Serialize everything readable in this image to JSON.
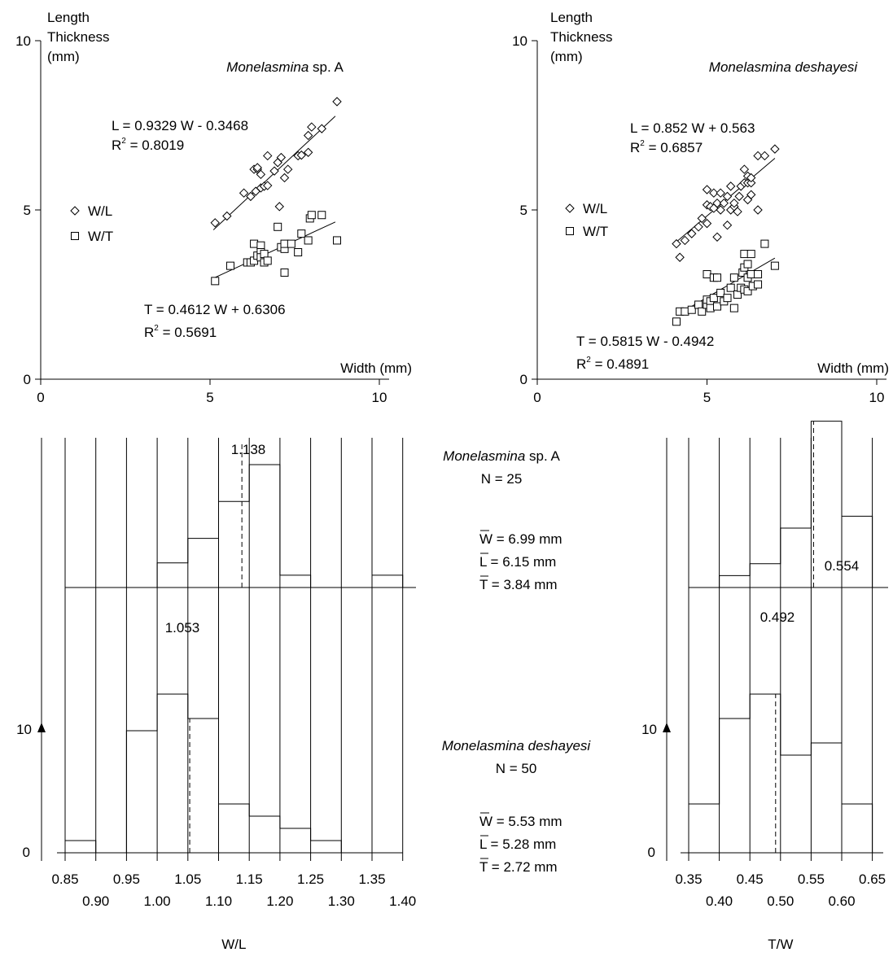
{
  "chart_data": [
    {
      "type": "scatter",
      "panel": "top-left",
      "title": "Monelasmina sp. A",
      "title_italic_part": "Monelasmina",
      "title_normal_part": " sp. A",
      "xlabel": "Width (mm)",
      "ylabel_lines": [
        "Length",
        "Thickness",
        "(mm)"
      ],
      "xlim": [
        0,
        10
      ],
      "ylim": [
        0,
        10
      ],
      "xticks": [
        0,
        5,
        10
      ],
      "yticks": [
        0,
        5,
        10
      ],
      "grid": false,
      "legend_placement": "left",
      "series": [
        {
          "name": "W/L",
          "marker": "diamond",
          "equation": "L = 0.9329 W - 0.3468",
          "r2_label": "R",
          "r2_sup": "2",
          "r2_value": " = 0.8019",
          "fit": {
            "slope": 0.9329,
            "intercept": -0.3468,
            "x_range": [
              5.1,
              8.7
            ]
          },
          "points": [
            [
              5.15,
              4.62
            ],
            [
              5.5,
              4.82
            ],
            [
              6.0,
              5.5
            ],
            [
              6.2,
              5.4
            ],
            [
              6.35,
              5.55
            ],
            [
              6.3,
              6.2
            ],
            [
              6.4,
              6.2
            ],
            [
              6.5,
              5.65
            ],
            [
              6.6,
              5.7
            ],
            [
              6.7,
              5.72
            ],
            [
              6.4,
              6.25
            ],
            [
              6.5,
              6.05
            ],
            [
              6.7,
              6.6
            ],
            [
              6.9,
              6.15
            ],
            [
              7.0,
              6.4
            ],
            [
              7.05,
              5.1
            ],
            [
              7.2,
              5.95
            ],
            [
              7.1,
              6.55
            ],
            [
              7.3,
              6.2
            ],
            [
              7.6,
              6.6
            ],
            [
              7.7,
              6.62
            ],
            [
              7.9,
              6.7
            ],
            [
              7.9,
              7.2
            ],
            [
              8.0,
              7.45
            ],
            [
              8.3,
              7.4
            ],
            [
              8.75,
              8.2
            ]
          ]
        },
        {
          "name": "W/T",
          "marker": "square",
          "equation": "T = 0.4612 W + 0.6306",
          "r2_label": "R",
          "r2_sup": "2",
          "r2_value": " = 0.5691",
          "fit": {
            "slope": 0.4612,
            "intercept": 0.6306,
            "x_range": [
              5.1,
              8.7
            ]
          },
          "points": [
            [
              5.15,
              2.9
            ],
            [
              5.6,
              3.35
            ],
            [
              6.1,
              3.45
            ],
            [
              6.2,
              3.45
            ],
            [
              6.3,
              3.5
            ],
            [
              6.3,
              4.0
            ],
            [
              6.4,
              3.65
            ],
            [
              6.5,
              3.95
            ],
            [
              6.5,
              3.75
            ],
            [
              6.5,
              3.6
            ],
            [
              6.6,
              3.7
            ],
            [
              6.6,
              3.45
            ],
            [
              6.7,
              3.5
            ],
            [
              7.0,
              4.5
            ],
            [
              7.1,
              3.9
            ],
            [
              7.2,
              3.85
            ],
            [
              7.2,
              4.0
            ],
            [
              7.2,
              3.15
            ],
            [
              7.4,
              4.0
            ],
            [
              7.6,
              3.75
            ],
            [
              7.7,
              4.3
            ],
            [
              7.9,
              4.1
            ],
            [
              7.95,
              4.75
            ],
            [
              8.0,
              4.85
            ],
            [
              8.3,
              4.85
            ],
            [
              8.75,
              4.1
            ]
          ]
        }
      ]
    },
    {
      "type": "scatter",
      "panel": "top-right",
      "title": "Monelasmina deshayesi",
      "xlabel": "Width (mm)",
      "ylabel_lines": [
        "Length",
        "Thickness",
        "(mm)"
      ],
      "xlim": [
        0,
        10
      ],
      "ylim": [
        0,
        10
      ],
      "xticks": [
        0,
        5,
        10
      ],
      "yticks": [
        0,
        5,
        10
      ],
      "grid": false,
      "legend_placement": "left",
      "series": [
        {
          "name": "W/L",
          "marker": "diamond",
          "equation": "L = 0.852 W + 0.563",
          "r2_label": "R",
          "r2_sup": "2",
          "r2_value": " = 0.6857",
          "fit": {
            "slope": 0.852,
            "intercept": 0.563,
            "x_range": [
              4.1,
              7.0
            ]
          },
          "points": [
            [
              4.1,
              4.0
            ],
            [
              4.2,
              3.6
            ],
            [
              4.35,
              4.1
            ],
            [
              4.55,
              4.3
            ],
            [
              4.75,
              4.5
            ],
            [
              4.85,
              4.75
            ],
            [
              5.0,
              4.6
            ],
            [
              5.0,
              5.15
            ],
            [
              5.0,
              5.6
            ],
            [
              5.1,
              5.1
            ],
            [
              5.2,
              5.05
            ],
            [
              5.2,
              5.5
            ],
            [
              5.3,
              5.2
            ],
            [
              5.3,
              4.2
            ],
            [
              5.4,
              5.0
            ],
            [
              5.4,
              5.5
            ],
            [
              5.5,
              5.2
            ],
            [
              5.6,
              5.4
            ],
            [
              5.6,
              4.55
            ],
            [
              5.7,
              5.0
            ],
            [
              5.7,
              5.7
            ],
            [
              5.8,
              5.1
            ],
            [
              5.8,
              5.2
            ],
            [
              5.9,
              4.95
            ],
            [
              5.95,
              5.4
            ],
            [
              6.0,
              5.7
            ],
            [
              6.1,
              5.8
            ],
            [
              6.1,
              6.2
            ],
            [
              6.2,
              5.8
            ],
            [
              6.2,
              6.0
            ],
            [
              6.2,
              5.3
            ],
            [
              6.3,
              5.8
            ],
            [
              6.3,
              5.45
            ],
            [
              6.3,
              5.95
            ],
            [
              6.5,
              5.0
            ],
            [
              6.5,
              6.6
            ],
            [
              6.7,
              6.6
            ],
            [
              7.0,
              6.8
            ]
          ]
        },
        {
          "name": "W/T",
          "marker": "square",
          "equation": "T = 0.5815 W - 0.4942",
          "r2_label": "R",
          "r2_sup": "2",
          "r2_value": " = 0.4891",
          "fit": {
            "slope": 0.5815,
            "intercept": -0.4942,
            "x_range": [
              4.1,
              7.0
            ]
          },
          "points": [
            [
              4.1,
              1.7
            ],
            [
              4.2,
              2.0
            ],
            [
              4.35,
              2.0
            ],
            [
              4.55,
              2.05
            ],
            [
              4.75,
              2.2
            ],
            [
              4.85,
              2.0
            ],
            [
              5.0,
              2.2
            ],
            [
              5.0,
              2.35
            ],
            [
              5.0,
              3.1
            ],
            [
              5.1,
              2.3
            ],
            [
              5.1,
              2.1
            ],
            [
              5.2,
              2.4
            ],
            [
              5.2,
              3.0
            ],
            [
              5.3,
              3.0
            ],
            [
              5.3,
              2.15
            ],
            [
              5.4,
              2.55
            ],
            [
              5.5,
              2.3
            ],
            [
              5.6,
              2.4
            ],
            [
              5.7,
              2.7
            ],
            [
              5.8,
              3.0
            ],
            [
              5.8,
              2.1
            ],
            [
              5.9,
              2.5
            ],
            [
              6.0,
              2.7
            ],
            [
              6.05,
              3.15
            ],
            [
              6.1,
              2.65
            ],
            [
              6.1,
              3.3
            ],
            [
              6.1,
              3.7
            ],
            [
              6.2,
              2.6
            ],
            [
              6.2,
              3.4
            ],
            [
              6.2,
              3.0
            ],
            [
              6.3,
              3.7
            ],
            [
              6.3,
              3.1
            ],
            [
              6.35,
              2.75
            ],
            [
              6.5,
              2.8
            ],
            [
              6.5,
              3.1
            ],
            [
              6.7,
              4.0
            ],
            [
              7.0,
              3.35
            ]
          ]
        }
      ]
    },
    {
      "type": "histogram",
      "panel": "bottom-left",
      "xlabel": "W/L",
      "bin_edges": [
        0.85,
        0.9,
        0.95,
        1.0,
        1.05,
        1.1,
        1.15,
        1.2,
        1.25,
        1.3,
        1.35,
        1.4
      ],
      "xtick_labels_row1": [
        "0.85",
        "0.95",
        "1.05",
        "1.15",
        "1.25",
        "1.35"
      ],
      "xtick_labels_row2": [
        "0.90",
        "1.00",
        "1.10",
        "1.20",
        "1.30",
        "1.40"
      ],
      "y_axis": {
        "tick": 10,
        "zero_label": "0",
        "ten_label": "10"
      },
      "series": [
        {
          "name": "Monelasmina sp. A",
          "counts": [
            0,
            0,
            0,
            2,
            4,
            7,
            10,
            1,
            0,
            0,
            1
          ],
          "mean": 1.138,
          "mean_label": "1.138"
        },
        {
          "name": "Monelasmina deshayesi",
          "counts": [
            1,
            0,
            10,
            13,
            11,
            4,
            3,
            2,
            1,
            0,
            0
          ],
          "mean": 1.053,
          "mean_label": "1.053"
        }
      ]
    },
    {
      "type": "histogram",
      "panel": "bottom-right",
      "xlabel": "T/W",
      "bin_edges": [
        0.35,
        0.4,
        0.45,
        0.5,
        0.55,
        0.6,
        0.65
      ],
      "xtick_labels_row1": [
        "0.35",
        "0.45",
        "0.55",
        "0.65"
      ],
      "xtick_labels_row2": [
        "0.40",
        "0.50",
        "0.60"
      ],
      "y_axis": {
        "tick": 10,
        "zero_label": "0",
        "ten_label": "10"
      },
      "series": [
        {
          "name": "Monelasmina sp. A",
          "counts": [
            0,
            1,
            2,
            5,
            14,
            6
          ],
          "mean": 0.554,
          "mean_label": "0.554"
        },
        {
          "name": "Monelasmina deshayesi",
          "counts": [
            4,
            11,
            13,
            8,
            9,
            4
          ],
          "mean": 0.492,
          "mean_label": "0.492"
        }
      ]
    }
  ],
  "summary": {
    "sp_a": {
      "name_italic": "Monelasmina",
      "name_normal": " sp. A",
      "n": "N = 25",
      "w_sym": "W",
      "w_val": " = 6.99 mm",
      "l_sym": "L",
      "l_val": " = 6.15 mm",
      "t_sym": "T",
      "t_val": " = 3.84 mm"
    },
    "deshayesi": {
      "name_italic": "Monelasmina deshayesi",
      "n": "N = 50",
      "w_sym": "W",
      "w_val": " = 5.53 mm",
      "l_sym": "L",
      "l_val": " = 5.28 mm",
      "t_sym": "T",
      "t_val": " = 2.72 mm"
    }
  }
}
